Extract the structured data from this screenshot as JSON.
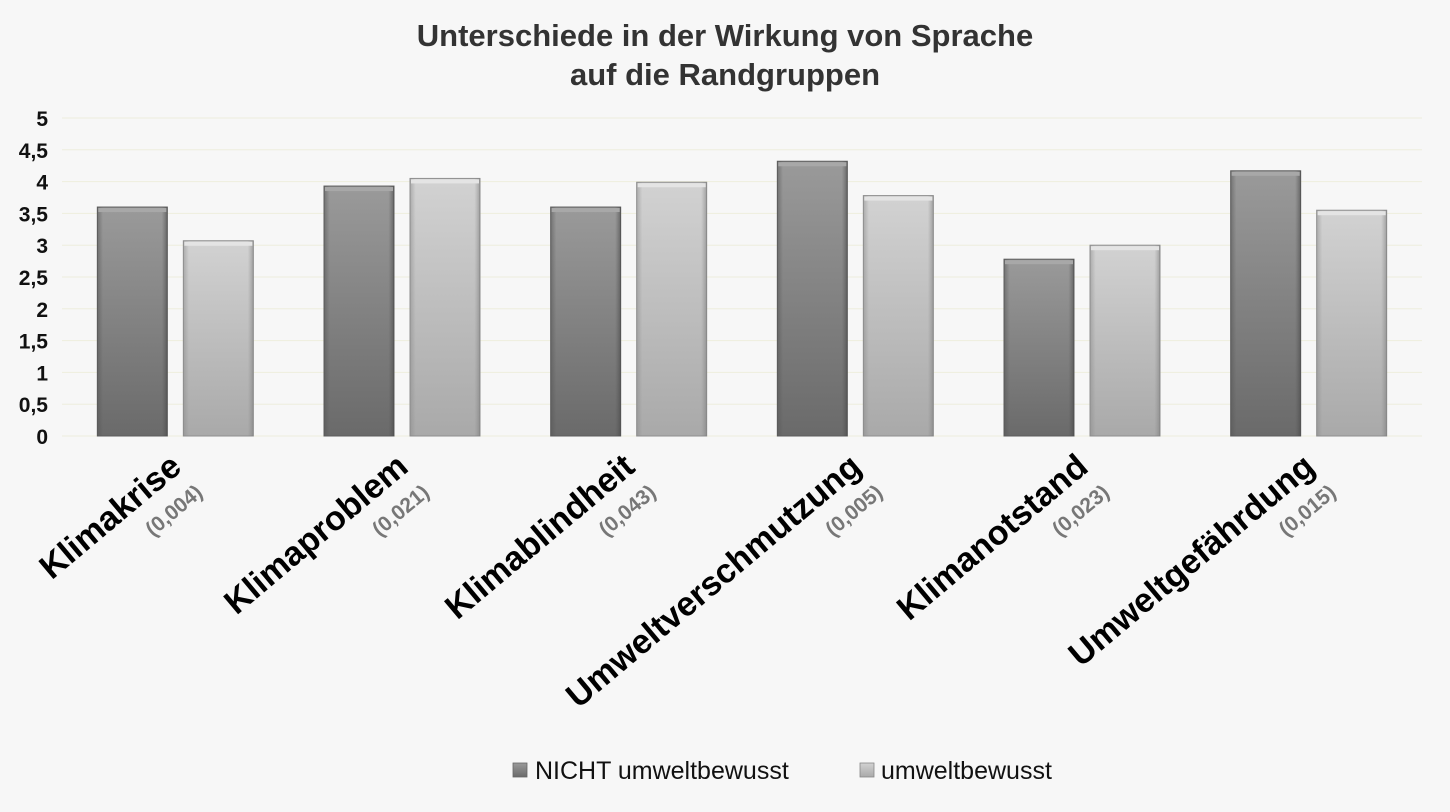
{
  "chart_data": {
    "type": "bar",
    "title_lines": [
      "Unterschiede in der Wirkung von Sprache",
      "auf die Randgruppen"
    ],
    "categories": [
      "Klimakrise",
      "Klimaproblem",
      "Klimablindheit",
      "Umweltverschmutzung",
      "Klimanotstand",
      "Umweltgefährdung"
    ],
    "category_sublabels": [
      "(0,004)",
      "(0,021)",
      "(0,043)",
      "(0,005)",
      "(0,023)",
      "(0,015)"
    ],
    "series": [
      {
        "name": "NICHT umweltbewusst",
        "values": [
          3.6,
          3.93,
          3.6,
          4.32,
          2.78,
          4.17
        ]
      },
      {
        "name": "umweltbewusst",
        "values": [
          3.07,
          4.05,
          3.99,
          3.78,
          3.0,
          3.55
        ]
      }
    ],
    "ylim": [
      0,
      5
    ],
    "yticks": [
      "0",
      "0,5",
      "1",
      "1,5",
      "2",
      "2,5",
      "3",
      "3,5",
      "4",
      "4,5",
      "5"
    ],
    "grid": true,
    "legend_position": "bottom",
    "colors": {
      "series_dark": "#7a7a7a",
      "series_light": "#c4c4c4",
      "title": "#333333",
      "sublabel": "#777777",
      "grid": "#eeeedd"
    }
  }
}
